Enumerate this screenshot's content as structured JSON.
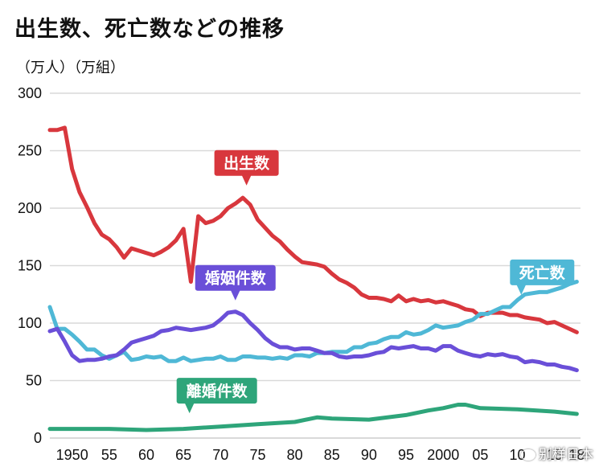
{
  "title": "出生数、死亡数などの推移",
  "units_label": "（万人）（万組）",
  "watermark": "别样日本",
  "colors": {
    "births": "#d8373d",
    "deaths": "#4fb8d6",
    "marriages": "#6a4fd8",
    "divorces": "#2ea57a",
    "grid": "#d9d9d9"
  },
  "chart_data": {
    "type": "line",
    "title": "出生数、死亡数などの推移",
    "ylabel": "（万人）（万組）",
    "ylim": [
      0,
      300
    ],
    "xlim": [
      1947,
      2018.5
    ],
    "yticks": [
      0,
      50,
      100,
      150,
      200,
      250,
      300
    ],
    "xticks": [
      {
        "value": 1950,
        "label": "1950"
      },
      {
        "value": 1955,
        "label": "55"
      },
      {
        "value": 1960,
        "label": "60"
      },
      {
        "value": 1965,
        "label": "65"
      },
      {
        "value": 1970,
        "label": "70"
      },
      {
        "value": 1975,
        "label": "75"
      },
      {
        "value": 1980,
        "label": "80"
      },
      {
        "value": 1985,
        "label": "85"
      },
      {
        "value": 1990,
        "label": "90"
      },
      {
        "value": 1995,
        "label": "95"
      },
      {
        "value": 2000,
        "label": "2000"
      },
      {
        "value": 2005,
        "label": "05"
      },
      {
        "value": 2010,
        "label": "10"
      },
      {
        "value": 2015,
        "label": "15"
      },
      {
        "value": 2018,
        "label": "18"
      }
    ],
    "grid": true,
    "series": [
      {
        "name": "出生数",
        "color": "#d8373d",
        "label_pos": {
          "year": 1973.5,
          "value": 210
        },
        "points": [
          [
            1947,
            268
          ],
          [
            1948,
            268
          ],
          [
            1949,
            270
          ],
          [
            1950,
            234
          ],
          [
            1951,
            214
          ],
          [
            1952,
            201
          ],
          [
            1953,
            187
          ],
          [
            1954,
            177
          ],
          [
            1955,
            173
          ],
          [
            1956,
            166
          ],
          [
            1957,
            157
          ],
          [
            1958,
            165
          ],
          [
            1959,
            163
          ],
          [
            1960,
            161
          ],
          [
            1961,
            159
          ],
          [
            1962,
            162
          ],
          [
            1963,
            166
          ],
          [
            1964,
            172
          ],
          [
            1965,
            182
          ],
          [
            1966,
            136
          ],
          [
            1967,
            193
          ],
          [
            1968,
            187
          ],
          [
            1969,
            189
          ],
          [
            1970,
            193
          ],
          [
            1971,
            200
          ],
          [
            1972,
            204
          ],
          [
            1973,
            209
          ],
          [
            1974,
            203
          ],
          [
            1975,
            190
          ],
          [
            1976,
            183
          ],
          [
            1977,
            176
          ],
          [
            1978,
            171
          ],
          [
            1979,
            164
          ],
          [
            1980,
            158
          ],
          [
            1981,
            153
          ],
          [
            1982,
            152
          ],
          [
            1983,
            151
          ],
          [
            1984,
            149
          ],
          [
            1985,
            143
          ],
          [
            1986,
            138
          ],
          [
            1987,
            135
          ],
          [
            1988,
            131
          ],
          [
            1989,
            125
          ],
          [
            1990,
            122
          ],
          [
            1991,
            122
          ],
          [
            1992,
            121
          ],
          [
            1993,
            119
          ],
          [
            1994,
            124
          ],
          [
            1995,
            119
          ],
          [
            1996,
            121
          ],
          [
            1997,
            119
          ],
          [
            1998,
            120
          ],
          [
            1999,
            118
          ],
          [
            2000,
            119
          ],
          [
            2001,
            117
          ],
          [
            2002,
            115
          ],
          [
            2003,
            112
          ],
          [
            2004,
            111
          ],
          [
            2005,
            106
          ],
          [
            2006,
            109
          ],
          [
            2007,
            109
          ],
          [
            2008,
            109
          ],
          [
            2009,
            107
          ],
          [
            2010,
            107
          ],
          [
            2011,
            105
          ],
          [
            2012,
            104
          ],
          [
            2013,
            103
          ],
          [
            2014,
            100
          ],
          [
            2015,
            101
          ],
          [
            2016,
            98
          ],
          [
            2017,
            95
          ],
          [
            2018,
            92
          ]
        ]
      },
      {
        "name": "死亡数",
        "color": "#4fb8d6",
        "label_pos": {
          "year": 2009,
          "value": 119
        },
        "points": [
          [
            1947,
            114
          ],
          [
            1948,
            95
          ],
          [
            1949,
            95
          ],
          [
            1950,
            90
          ],
          [
            1951,
            84
          ],
          [
            1952,
            77
          ],
          [
            1953,
            77
          ],
          [
            1954,
            72
          ],
          [
            1955,
            69
          ],
          [
            1956,
            72
          ],
          [
            1957,
            75
          ],
          [
            1958,
            68
          ],
          [
            1959,
            69
          ],
          [
            1960,
            71
          ],
          [
            1961,
            70
          ],
          [
            1962,
            71
          ],
          [
            1963,
            67
          ],
          [
            1964,
            67
          ],
          [
            1965,
            70
          ],
          [
            1966,
            67
          ],
          [
            1967,
            68
          ],
          [
            1968,
            69
          ],
          [
            1969,
            69
          ],
          [
            1970,
            71
          ],
          [
            1971,
            68
          ],
          [
            1972,
            68
          ],
          [
            1973,
            71
          ],
          [
            1974,
            71
          ],
          [
            1975,
            70
          ],
          [
            1976,
            70
          ],
          [
            1977,
            69
          ],
          [
            1978,
            70
          ],
          [
            1979,
            69
          ],
          [
            1980,
            72
          ],
          [
            1981,
            72
          ],
          [
            1982,
            71
          ],
          [
            1983,
            74
          ],
          [
            1984,
            74
          ],
          [
            1985,
            75
          ],
          [
            1986,
            75
          ],
          [
            1987,
            75
          ],
          [
            1988,
            79
          ],
          [
            1989,
            79
          ],
          [
            1990,
            82
          ],
          [
            1991,
            83
          ],
          [
            1992,
            86
          ],
          [
            1993,
            88
          ],
          [
            1994,
            88
          ],
          [
            1995,
            92
          ],
          [
            1996,
            90
          ],
          [
            1997,
            91
          ],
          [
            1998,
            94
          ],
          [
            1999,
            98
          ],
          [
            2000,
            96
          ],
          [
            2001,
            97
          ],
          [
            2002,
            98
          ],
          [
            2003,
            101
          ],
          [
            2004,
            103
          ],
          [
            2005,
            108
          ],
          [
            2006,
            108
          ],
          [
            2007,
            111
          ],
          [
            2008,
            114
          ],
          [
            2009,
            114
          ],
          [
            2010,
            120
          ],
          [
            2011,
            125
          ],
          [
            2012,
            126
          ],
          [
            2013,
            127
          ],
          [
            2014,
            127
          ],
          [
            2015,
            129
          ],
          [
            2016,
            131
          ],
          [
            2017,
            134
          ],
          [
            2018,
            136
          ]
        ]
      },
      {
        "name": "婚姻件数",
        "color": "#6a4fd8",
        "label_pos": {
          "year": 1972,
          "value": 110
        },
        "points": [
          [
            1947,
            93
          ],
          [
            1948,
            95
          ],
          [
            1949,
            84
          ],
          [
            1950,
            72
          ],
          [
            1951,
            67
          ],
          [
            1952,
            68
          ],
          [
            1953,
            68
          ],
          [
            1954,
            69
          ],
          [
            1955,
            71
          ],
          [
            1956,
            72
          ],
          [
            1957,
            77
          ],
          [
            1958,
            83
          ],
          [
            1959,
            85
          ],
          [
            1960,
            87
          ],
          [
            1961,
            89
          ],
          [
            1962,
            93
          ],
          [
            1963,
            94
          ],
          [
            1964,
            96
          ],
          [
            1965,
            95
          ],
          [
            1966,
            94
          ],
          [
            1967,
            95
          ],
          [
            1968,
            96
          ],
          [
            1969,
            98
          ],
          [
            1970,
            103
          ],
          [
            1971,
            109
          ],
          [
            1972,
            110
          ],
          [
            1973,
            107
          ],
          [
            1974,
            100
          ],
          [
            1975,
            94
          ],
          [
            1976,
            87
          ],
          [
            1977,
            82
          ],
          [
            1978,
            79
          ],
          [
            1979,
            79
          ],
          [
            1980,
            77
          ],
          [
            1981,
            78
          ],
          [
            1982,
            78
          ],
          [
            1983,
            76
          ],
          [
            1984,
            74
          ],
          [
            1985,
            74
          ],
          [
            1986,
            71
          ],
          [
            1987,
            70
          ],
          [
            1988,
            71
          ],
          [
            1989,
            71
          ],
          [
            1990,
            72
          ],
          [
            1991,
            74
          ],
          [
            1992,
            75
          ],
          [
            1993,
            79
          ],
          [
            1994,
            78
          ],
          [
            1995,
            79
          ],
          [
            1996,
            80
          ],
          [
            1997,
            78
          ],
          [
            1998,
            78
          ],
          [
            1999,
            76
          ],
          [
            2000,
            80
          ],
          [
            2001,
            80
          ],
          [
            2002,
            76
          ],
          [
            2003,
            74
          ],
          [
            2004,
            72
          ],
          [
            2005,
            71
          ],
          [
            2006,
            73
          ],
          [
            2007,
            72
          ],
          [
            2008,
            73
          ],
          [
            2009,
            71
          ],
          [
            2010,
            70
          ],
          [
            2011,
            66
          ],
          [
            2012,
            67
          ],
          [
            2013,
            66
          ],
          [
            2014,
            64
          ],
          [
            2015,
            64
          ],
          [
            2016,
            62
          ],
          [
            2017,
            61
          ],
          [
            2018,
            59
          ]
        ]
      },
      {
        "name": "離婚件数",
        "color": "#2ea57a",
        "label_pos": {
          "year": 1963,
          "value": 9
        },
        "points": [
          [
            1947,
            8
          ],
          [
            1950,
            8
          ],
          [
            1955,
            8
          ],
          [
            1960,
            7
          ],
          [
            1965,
            8
          ],
          [
            1970,
            10
          ],
          [
            1975,
            12
          ],
          [
            1980,
            14
          ],
          [
            1983,
            18
          ],
          [
            1985,
            17
          ],
          [
            1990,
            16
          ],
          [
            1995,
            20
          ],
          [
            1998,
            24
          ],
          [
            2000,
            26
          ],
          [
            2002,
            29
          ],
          [
            2003,
            29
          ],
          [
            2005,
            26
          ],
          [
            2010,
            25
          ],
          [
            2015,
            23
          ],
          [
            2018,
            21
          ]
        ]
      }
    ]
  }
}
